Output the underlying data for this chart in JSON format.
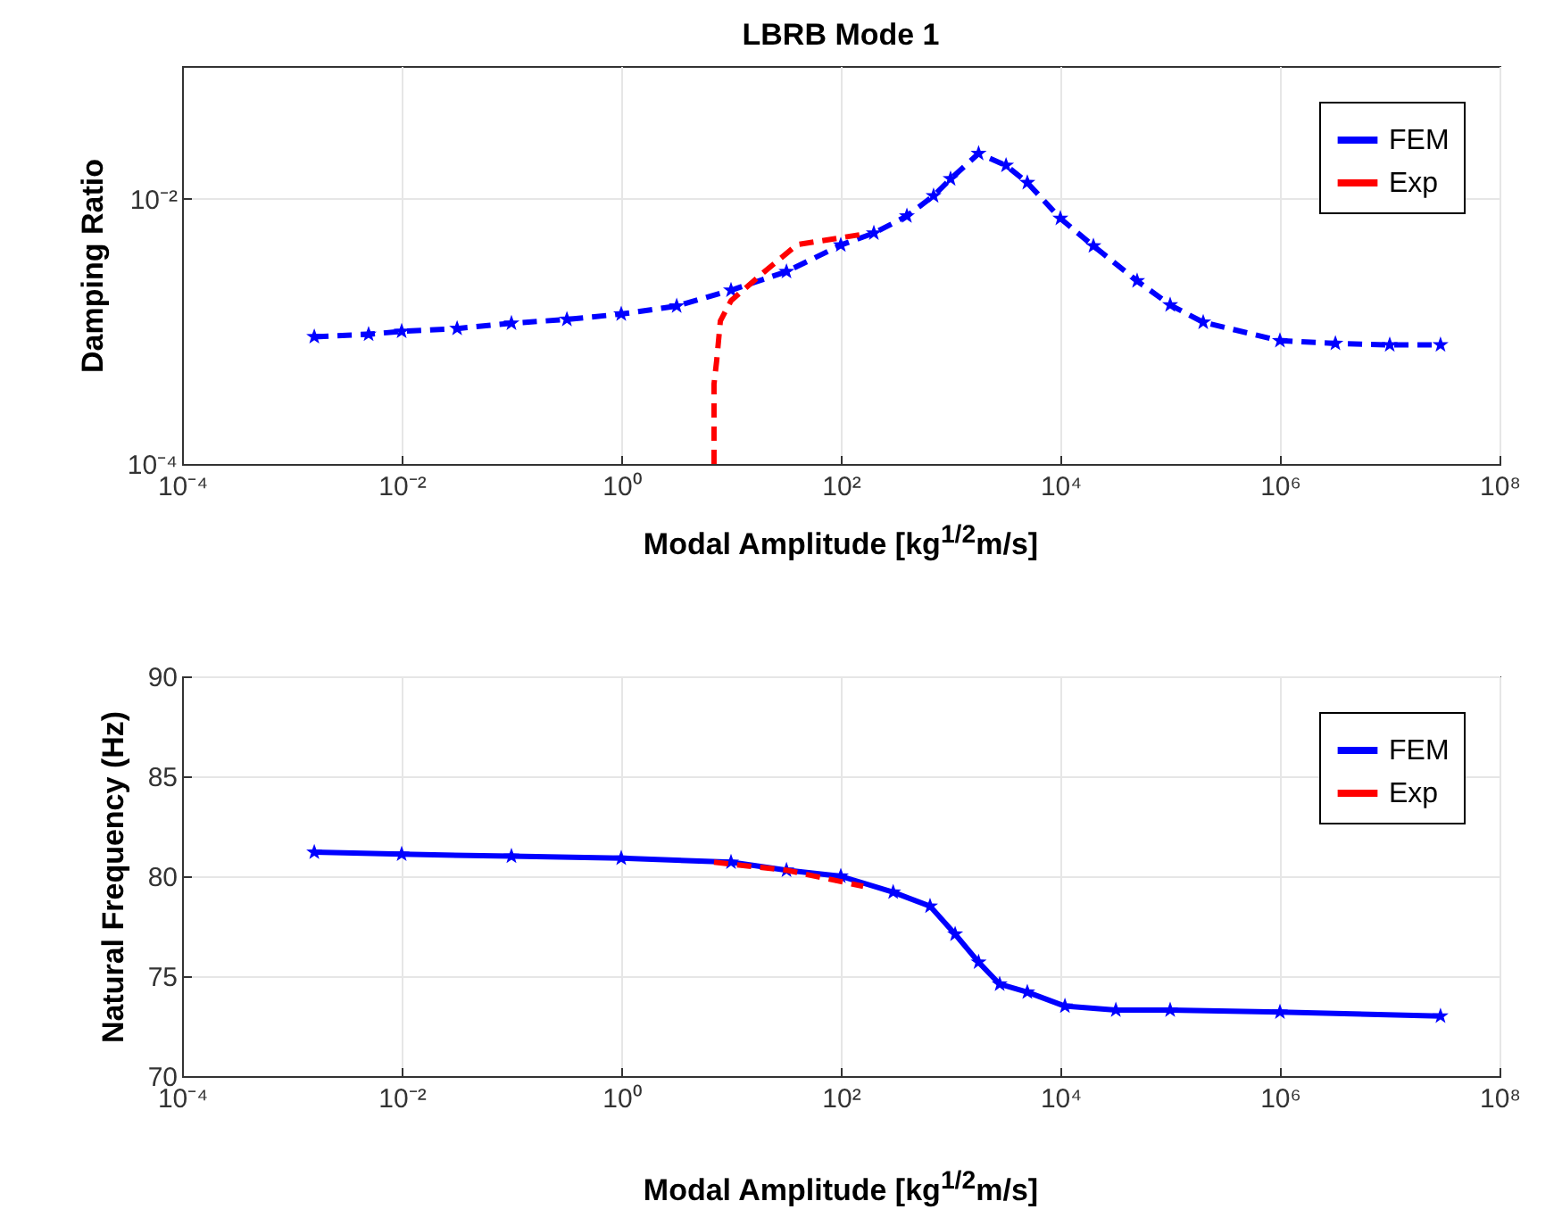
{
  "chart_data": [
    {
      "type": "line",
      "title": "LBRB Mode 1",
      "xlabel": "Modal Amplitude [kg$^{1/2}$m/s]",
      "ylabel": "Damping Ratio",
      "log": "xy",
      "grid": true,
      "legend": "top right",
      "xlim": [
        0.0001,
        100000000
      ],
      "xticks": [
        {
          "value": 0.0001,
          "label": "10⁻⁴"
        },
        {
          "value": 0.01,
          "label": "10⁻²"
        },
        {
          "value": 1,
          "label": "10⁰"
        },
        {
          "value": 100,
          "label": "10²"
        },
        {
          "value": 10000,
          "label": "10⁴"
        },
        {
          "value": 1000000,
          "label": "10⁶"
        },
        {
          "value": 100000000,
          "label": "10⁸"
        }
      ],
      "ylim": [
        0.0001,
        0.1
      ],
      "yticks": [
        {
          "value": 0.0001,
          "label": "10⁻⁴"
        },
        {
          "value": 0.01,
          "label": "10⁻²"
        }
      ],
      "series": [
        {
          "name": "FEM",
          "color": "#0000ff",
          "marker": "star",
          "line_style": "dashed",
          "x": [
            0.0016,
            0.005,
            0.01,
            0.032,
            0.1,
            0.32,
            1,
            3.2,
            10,
            32,
            100,
            200,
            400,
            700,
            1000,
            1800,
            3200,
            5000,
            10000,
            20000,
            50000,
            100000,
            200000,
            1000000,
            3200000,
            10000000,
            29000000
          ],
          "values": [
            0.00091,
            0.00095,
            0.001,
            0.00105,
            0.00115,
            0.00123,
            0.00135,
            0.00155,
            0.00204,
            0.00282,
            0.00447,
            0.0055,
            0.0074,
            0.0105,
            0.0141,
            0.0219,
            0.0178,
            0.0132,
            0.0071,
            0.0044,
            0.0024,
            0.00158,
            0.00117,
            0.00085,
            0.00081,
            0.00079,
            0.00079
          ]
        },
        {
          "name": "Exp",
          "color": "#ff0000",
          "marker": "none",
          "line_style": "dashed",
          "x": [
            7,
            7,
            7.4,
            8,
            10,
            20,
            40,
            160
          ],
          "values": [
            0.0001,
            0.0004,
            0.0006,
            0.0012,
            0.0017,
            0.0028,
            0.0045,
            0.0054
          ]
        }
      ]
    },
    {
      "type": "line",
      "xlabel": "Modal Amplitude [kg$^{1/2}$m/s]",
      "ylabel": "Natural Frequency (Hz)",
      "log": "x",
      "grid": true,
      "legend": "top right",
      "xlim": [
        0.0001,
        100000000
      ],
      "xticks": [
        {
          "value": 0.0001,
          "label": "10⁻⁴"
        },
        {
          "value": 0.01,
          "label": "10⁻²"
        },
        {
          "value": 1,
          "label": "10⁰"
        },
        {
          "value": 100,
          "label": "10²"
        },
        {
          "value": 10000,
          "label": "10⁴"
        },
        {
          "value": 1000000,
          "label": "10⁶"
        },
        {
          "value": 100000000,
          "label": "10⁸"
        }
      ],
      "ylim": [
        70,
        90
      ],
      "yticks": [
        70,
        75,
        80,
        85,
        90
      ],
      "series": [
        {
          "name": "FEM",
          "color": "#0000ff",
          "marker": "star",
          "line_style": "solid",
          "x": [
            0.0016,
            0.01,
            0.1,
            1,
            10,
            32,
            100,
            300,
            650,
            1100,
            1800,
            2800,
            5000,
            11000,
            32000,
            100000,
            1000000,
            29000000
          ],
          "values": [
            81.2,
            81.1,
            81.0,
            80.9,
            80.7,
            80.3,
            80.0,
            79.2,
            78.5,
            77.1,
            75.7,
            74.6,
            74.2,
            73.5,
            73.3,
            73.3,
            73.2,
            73.0
          ]
        },
        {
          "name": "Exp",
          "color": "#ff0000",
          "marker": "none",
          "line_style": "dashed",
          "x": [
            7,
            32,
            160
          ],
          "values": [
            80.7,
            80.3,
            79.5
          ]
        }
      ]
    }
  ]
}
